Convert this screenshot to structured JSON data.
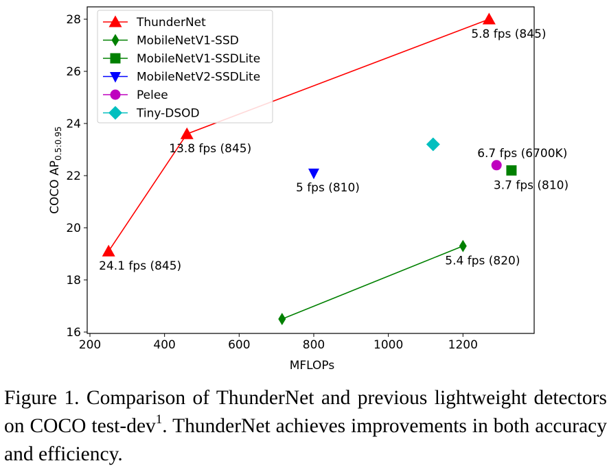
{
  "chart_data": {
    "type": "scatter",
    "xlabel": "MFLOPs",
    "ylabel_main": "COCO AP",
    "ylabel_sub": "0.5:0.95",
    "xlim": [
      200,
      1390
    ],
    "ylim": [
      16,
      28.4
    ],
    "xticks": [
      "200",
      "400",
      "600",
      "800",
      "1000",
      "1200"
    ],
    "yticks": [
      "16",
      "18",
      "20",
      "22",
      "24",
      "26",
      "28"
    ],
    "grid": false,
    "legend_placement": "top-left",
    "series": [
      {
        "name": "ThunderNet",
        "color": "#ff0000",
        "marker": "triangle-up",
        "connected": true,
        "points": [
          {
            "x": 250,
            "y": 19.1,
            "label": "24.1 fps (845)"
          },
          {
            "x": 460,
            "y": 23.6,
            "label": "13.8 fps (845)"
          },
          {
            "x": 1270,
            "y": 28.0,
            "label": "5.8 fps (845)"
          }
        ]
      },
      {
        "name": "MobileNetV1-SSD",
        "color": "#008000",
        "marker": "thin-diamond",
        "connected": true,
        "points": [
          {
            "x": 715,
            "y": 16.5,
            "label": ""
          },
          {
            "x": 1200,
            "y": 19.3,
            "label": "5.4 fps (820)"
          }
        ]
      },
      {
        "name": "MobileNetV1-SSDLite",
        "color": "#008000",
        "marker": "square",
        "connected": false,
        "points": [
          {
            "x": 1330,
            "y": 22.2,
            "label": "3.7 fps (810)"
          }
        ]
      },
      {
        "name": "MobileNetV2-SSDLite",
        "color": "#0000ff",
        "marker": "triangle-down",
        "connected": false,
        "points": [
          {
            "x": 800,
            "y": 22.1,
            "label": "5 fps (810)"
          }
        ]
      },
      {
        "name": "Pelee",
        "color": "#bf00bf",
        "marker": "circle",
        "connected": false,
        "points": [
          {
            "x": 1290,
            "y": 22.4,
            "label": "6.7 fps (6700K)"
          }
        ]
      },
      {
        "name": "Tiny-DSOD",
        "color": "#00bfbf",
        "marker": "diamond",
        "connected": false,
        "points": [
          {
            "x": 1120,
            "y": 23.2,
            "label": ""
          }
        ]
      }
    ]
  },
  "caption": {
    "prefix": "Figure 1.   Comparison of ThunderNet and previous lightweight detectors on COCO test-dev",
    "superscript": "1",
    "suffix": ". ThunderNet achieves improvements in both accuracy and efficiency."
  }
}
